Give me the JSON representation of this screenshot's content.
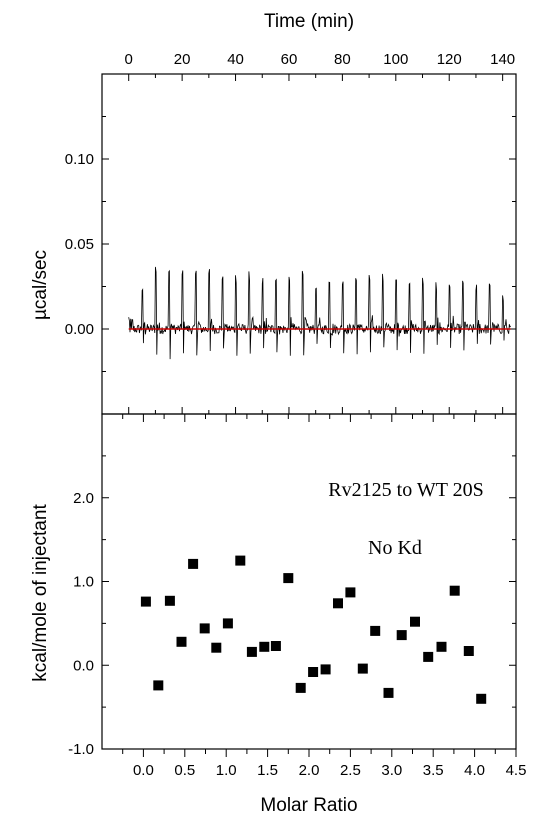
{
  "top_panel": {
    "top_axis_title": "Time (min)",
    "ylabel": "µcal/sec",
    "ylim": [
      -0.05,
      0.15
    ],
    "y_ticks": [
      0.1,
      0.05,
      0.0
    ],
    "y_tick_labels": [
      "0.10",
      "0.05",
      "0.00"
    ],
    "time_range": [
      -10,
      145
    ],
    "time_ticks": [
      0,
      20,
      40,
      60,
      80,
      100,
      120,
      140
    ],
    "time_tick_labels": [
      "0",
      "20",
      "40",
      "60",
      "80",
      "100",
      "120",
      "140"
    ],
    "trace_color": "#000000",
    "baseline_color": "#cc0000"
  },
  "chart_data": {
    "type": "scatter",
    "xlabel": "Molar Ratio",
    "ylabel": "kcal/mole of injectant",
    "xlim": [
      -0.5,
      4.5
    ],
    "ylim": [
      -1.0,
      3.0
    ],
    "x_ticks": [
      0.0,
      0.5,
      1.0,
      1.5,
      2.0,
      2.5,
      3.0,
      3.5,
      4.0,
      4.5
    ],
    "x_tick_labels": [
      "0.0",
      "0.5",
      "1.0",
      "1.5",
      "2.0",
      "2.5",
      "3.0",
      "3.5",
      "4.0",
      "4.5"
    ],
    "y_ticks": [
      -1.0,
      0.0,
      1.0,
      2.0
    ],
    "y_tick_labels": [
      "-1.0",
      "0.0",
      "1.0",
      "2.0"
    ],
    "x": [
      0.03,
      0.18,
      0.32,
      0.46,
      0.6,
      0.74,
      0.88,
      1.02,
      1.17,
      1.31,
      1.46,
      1.6,
      1.75,
      1.9,
      2.05,
      2.2,
      2.35,
      2.5,
      2.65,
      2.8,
      2.96,
      3.12,
      3.28,
      3.44,
      3.6,
      3.76,
      3.93,
      4.08
    ],
    "y": [
      0.76,
      -0.24,
      0.77,
      0.28,
      1.21,
      0.44,
      0.21,
      0.5,
      1.25,
      0.16,
      0.22,
      0.23,
      1.04,
      -0.27,
      -0.08,
      -0.05,
      0.74,
      0.87,
      -0.04,
      0.41,
      -0.33,
      0.36,
      0.52,
      0.1,
      0.22,
      0.89,
      0.17,
      -0.4
    ],
    "annotations": [
      "Rv2125 to WT 20S",
      "No Kd"
    ],
    "marker_color": "#000000"
  }
}
